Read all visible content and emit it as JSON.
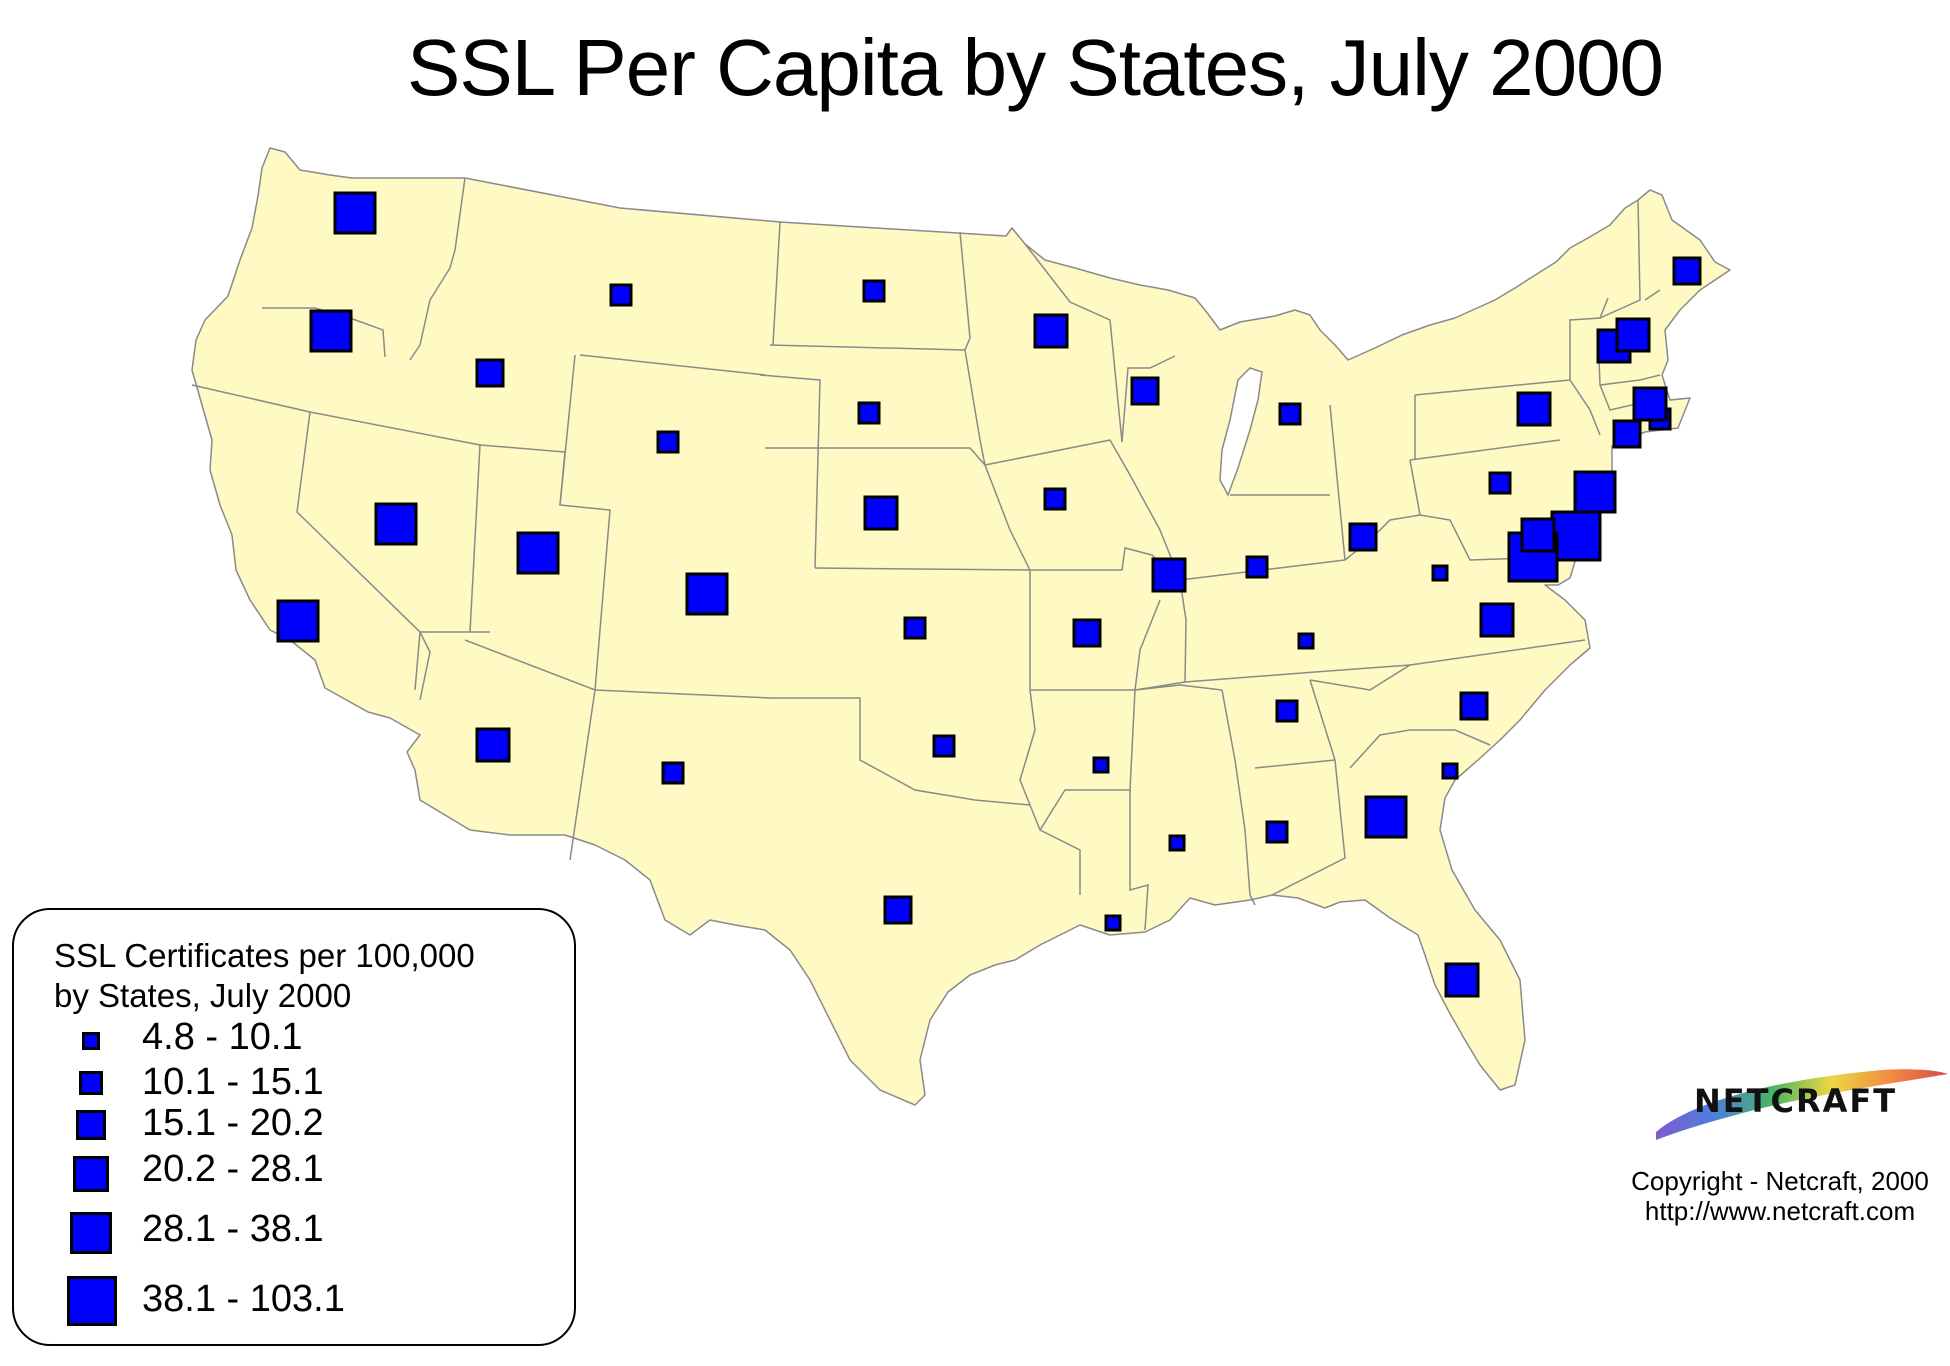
{
  "title": "SSL Per Capita by States, July 2000",
  "colors": {
    "land": "#fff9c4",
    "border": "#8a8a8a",
    "symbol_fill": "#0000ff",
    "symbol_stroke": "#000000"
  },
  "legend": {
    "title_line1": "SSL Certificates per 100,000",
    "title_line2": "by States, July 2000",
    "classes": [
      {
        "label": "4.8 - 10.1"
      },
      {
        "label": "10.1 - 15.1"
      },
      {
        "label": "15.1 - 20.2"
      },
      {
        "label": "20.2 - 28.1"
      },
      {
        "label": "28.1 - 38.1"
      },
      {
        "label": "38.1 - 103.1"
      }
    ]
  },
  "logo": {
    "text": "NETCRAFT"
  },
  "copyright": {
    "line1": "Copyright - Netcraft, 2000",
    "line2": "http://www.netcraft.com"
  },
  "chart_data": {
    "type": "proportional-symbol-map",
    "symbol": "square",
    "symbols": [
      {
        "state": "WA",
        "class": 4
      },
      {
        "state": "OR",
        "class": 4
      },
      {
        "state": "CA",
        "class": 4
      },
      {
        "state": "ID",
        "class": 2
      },
      {
        "state": "NV",
        "class": 4
      },
      {
        "state": "MT",
        "class": 1
      },
      {
        "state": "WY",
        "class": 1
      },
      {
        "state": "UT",
        "class": 4
      },
      {
        "state": "AZ",
        "class": 3
      },
      {
        "state": "CO",
        "class": 4
      },
      {
        "state": "NM",
        "class": 1
      },
      {
        "state": "ND",
        "class": 1
      },
      {
        "state": "SD",
        "class": 1
      },
      {
        "state": "NE",
        "class": 3
      },
      {
        "state": "KS",
        "class": 1
      },
      {
        "state": "OK",
        "class": 1
      },
      {
        "state": "TX",
        "class": 2
      },
      {
        "state": "MN",
        "class": 3
      },
      {
        "state": "IA",
        "class": 1
      },
      {
        "state": "MO",
        "class": 2
      },
      {
        "state": "AR",
        "class": 0
      },
      {
        "state": "LA",
        "class": 0
      },
      {
        "state": "WI",
        "class": 2
      },
      {
        "state": "IL",
        "class": 3
      },
      {
        "state": "MI",
        "class": 1
      },
      {
        "state": "IN",
        "class": 1
      },
      {
        "state": "OH",
        "class": 2
      },
      {
        "state": "KY",
        "class": 0
      },
      {
        "state": "TN",
        "class": 1
      },
      {
        "state": "MS",
        "class": 0
      },
      {
        "state": "AL",
        "class": 1
      },
      {
        "state": "GA",
        "class": 4
      },
      {
        "state": "FL",
        "class": 3
      },
      {
        "state": "SC",
        "class": 0
      },
      {
        "state": "NC",
        "class": 2
      },
      {
        "state": "VA",
        "class": 3
      },
      {
        "state": "WV",
        "class": 0
      },
      {
        "state": "PA",
        "class": 1
      },
      {
        "state": "NY",
        "class": 3
      },
      {
        "state": "NJ",
        "class": 4
      },
      {
        "state": "DE",
        "class": 5
      },
      {
        "state": "MD",
        "class": 5
      },
      {
        "state": "DC",
        "class": 3
      },
      {
        "state": "CT",
        "class": 2
      },
      {
        "state": "RI",
        "class": 1
      },
      {
        "state": "MA",
        "class": 3
      },
      {
        "state": "VT",
        "class": 3
      },
      {
        "state": "NH",
        "class": 3
      },
      {
        "state": "ME",
        "class": 2
      }
    ]
  }
}
